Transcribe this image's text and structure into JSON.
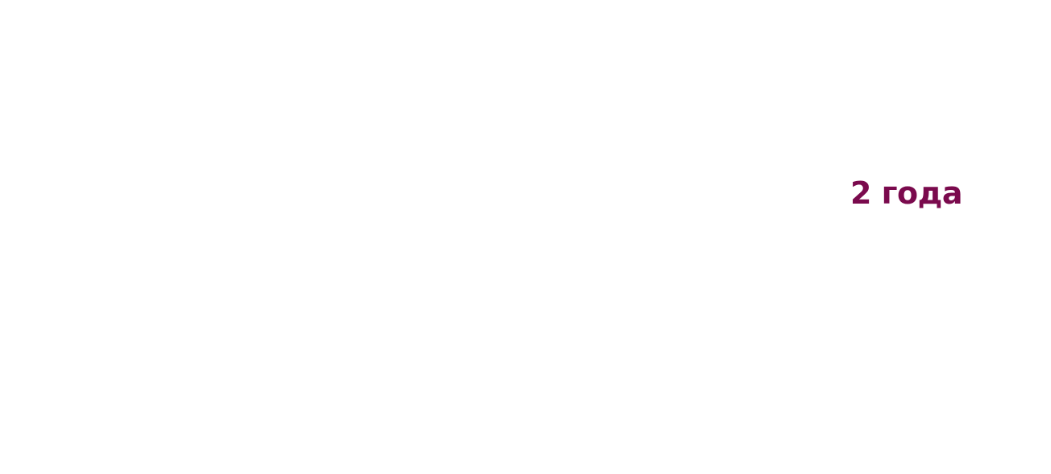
{
  "duration": {
    "label": "2 года",
    "color": "#7a0a4d"
  }
}
